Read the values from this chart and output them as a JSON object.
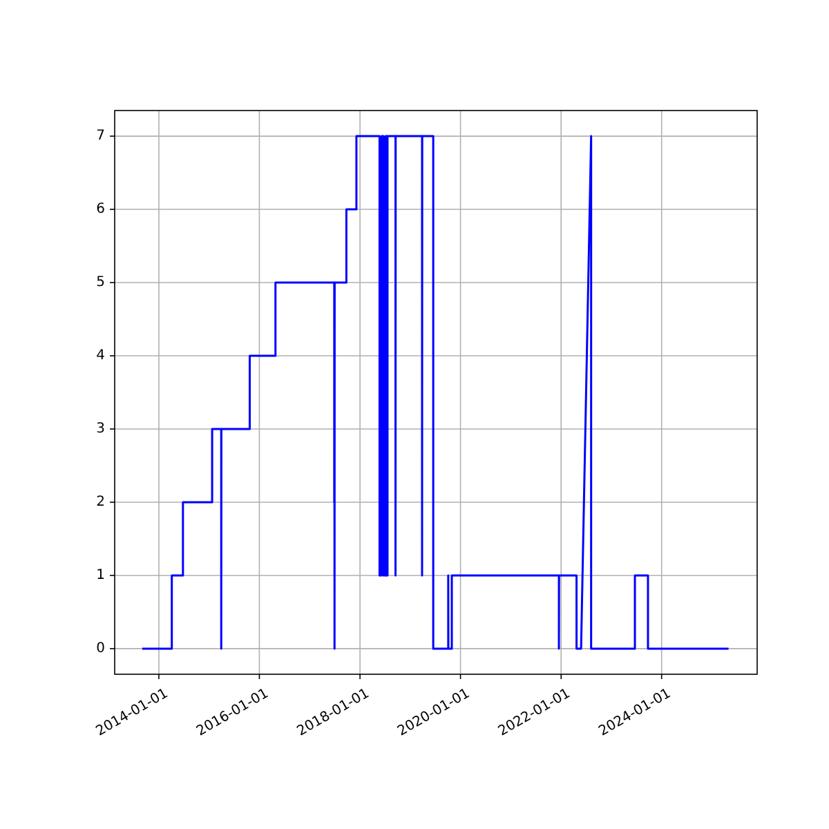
{
  "chart_data": {
    "type": "line",
    "x": [
      "2013-09-02",
      "2014-04-05",
      "2014-04-05",
      "2014-06-25",
      "2014-06-25",
      "2015-01-23",
      "2015-01-23",
      "2015-03-30",
      "2015-03-30",
      "2015-03-31",
      "2015-10-23",
      "2015-10-23",
      "2016-04-27",
      "2016-04-27",
      "2017-06-28",
      "2017-06-28",
      "2017-06-29",
      "2017-06-30",
      "2017-07-01",
      "2017-09-24",
      "2017-09-24",
      "2017-12-06",
      "2017-12-06",
      "2018-05-23",
      "2018-05-23",
      "2018-06-07",
      "2018-06-07",
      "2018-06-21",
      "2018-06-21",
      "2018-07-06",
      "2018-07-06",
      "2018-07-16",
      "2018-07-16",
      "2018-07-20",
      "2018-07-20",
      "2018-09-16",
      "2018-09-16",
      "2018-09-17",
      "2019-03-28",
      "2019-03-28",
      "2019-03-29",
      "2019-06-17",
      "2019-06-17",
      "2019-10-04",
      "2019-10-04",
      "2019-10-05",
      "2019-10-30",
      "2019-10-30",
      "2021-12-16",
      "2021-12-16",
      "2021-12-17",
      "2022-04-23",
      "2022-04-23",
      "2022-05-26",
      "2022-08-07",
      "2022-08-07",
      "2023-06-21",
      "2023-06-21",
      "2023-09-24",
      "2023-09-24",
      "2025-05-01"
    ],
    "series": [
      {
        "color": "#0000ff",
        "values": [
          0,
          0,
          1,
          1,
          2,
          2,
          3,
          3,
          0,
          3,
          3,
          4,
          4,
          5,
          5,
          2,
          5,
          0,
          5,
          5,
          6,
          6,
          7,
          7,
          1,
          1,
          7,
          7,
          1,
          1,
          7,
          7,
          1,
          1,
          7,
          7,
          1,
          7,
          7,
          1,
          7,
          7,
          0,
          0,
          1,
          0,
          0,
          1,
          1,
          0,
          1,
          1,
          0,
          0,
          7,
          0,
          0,
          1,
          1,
          0,
          0
        ]
      }
    ],
    "xlim": [
      "2013-02-14",
      "2025-11-25"
    ],
    "ylim": [
      -0.35,
      7.35
    ],
    "xticks": [
      "2014-01-01",
      "2016-01-01",
      "2018-01-01",
      "2020-01-01",
      "2022-01-01",
      "2024-01-01"
    ],
    "yticks": [
      0,
      1,
      2,
      3,
      4,
      5,
      6,
      7
    ],
    "grid": true
  }
}
